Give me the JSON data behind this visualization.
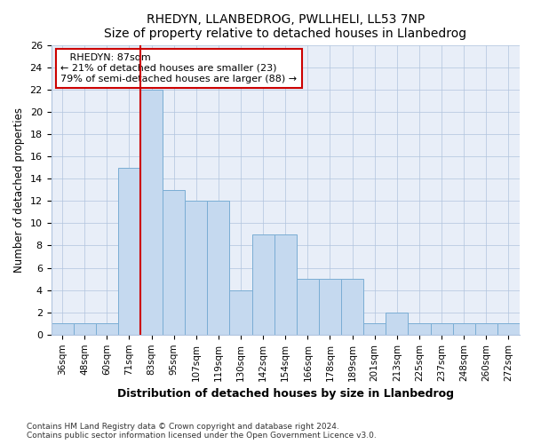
{
  "title": "RHEDYN, LLANBEDROG, PWLLHELI, LL53 7NP",
  "subtitle": "Size of property relative to detached houses in Llanbedrog",
  "xlabel": "Distribution of detached houses by size in Llanbedrog",
  "ylabel": "Number of detached properties",
  "categories": [
    "36sqm",
    "48sqm",
    "60sqm",
    "71sqm",
    "83sqm",
    "95sqm",
    "107sqm",
    "119sqm",
    "130sqm",
    "142sqm",
    "154sqm",
    "166sqm",
    "178sqm",
    "189sqm",
    "201sqm",
    "213sqm",
    "225sqm",
    "237sqm",
    "248sqm",
    "260sqm",
    "272sqm"
  ],
  "values": [
    1,
    1,
    1,
    15,
    22,
    13,
    12,
    12,
    4,
    9,
    9,
    5,
    5,
    5,
    1,
    2,
    1,
    1,
    1,
    1,
    1
  ],
  "bar_color": "#c5d9ef",
  "bar_edge_color": "#7aadd4",
  "rhedyn_line_index": 4,
  "rhedyn_label": "RHEDYN: 87sqm",
  "annotation_line1": "← 21% of detached houses are smaller (23)",
  "annotation_line2": "79% of semi-detached houses are larger (88) →",
  "annotation_box_color": "#ffffff",
  "annotation_box_edge": "#cc0000",
  "rhedyn_line_color": "#cc0000",
  "ylim": [
    0,
    26
  ],
  "yticks": [
    0,
    2,
    4,
    6,
    8,
    10,
    12,
    14,
    16,
    18,
    20,
    22,
    24,
    26
  ],
  "footer1": "Contains HM Land Registry data © Crown copyright and database right 2024.",
  "footer2": "Contains public sector information licensed under the Open Government Licence v3.0.",
  "bg_color": "#e8eef8"
}
